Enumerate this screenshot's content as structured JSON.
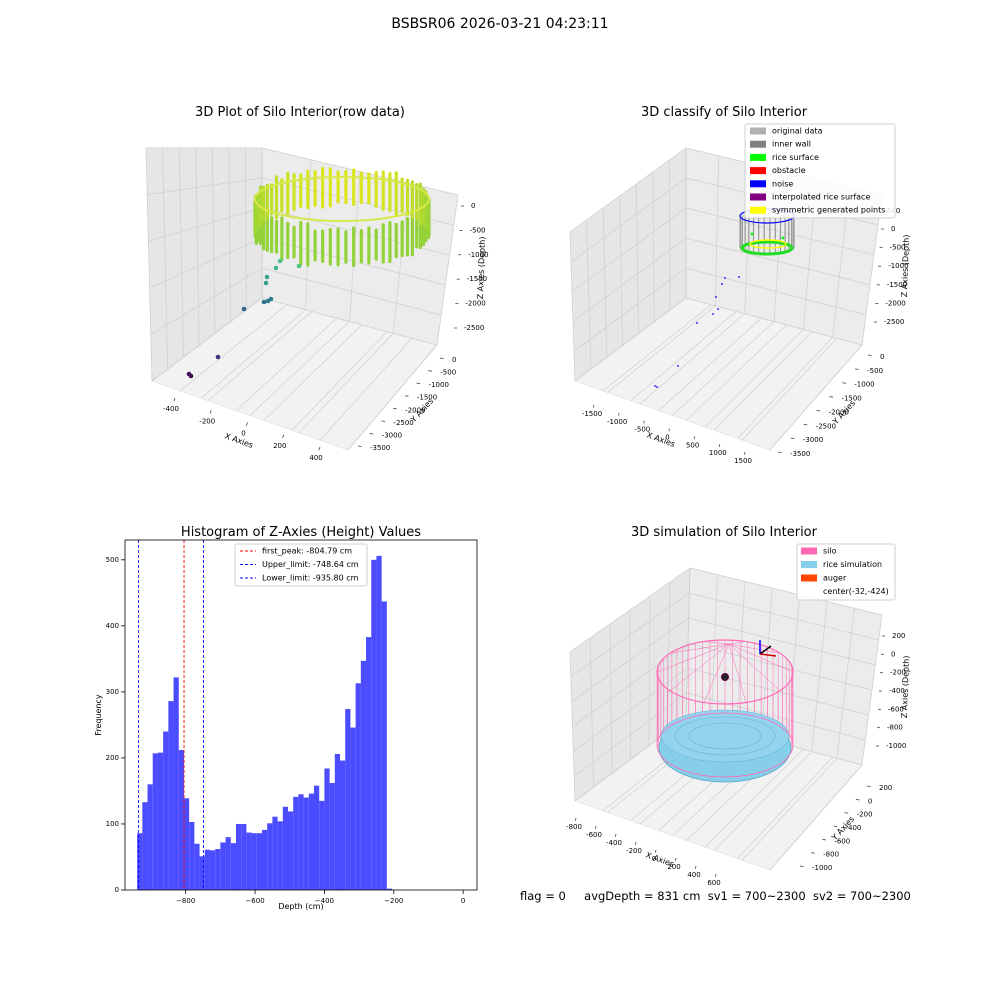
{
  "suptitle": "BSBSR06 2026-03-21 04:23:11",
  "status_line": {
    "flag": "flag = 0",
    "avg_depth": "avgDepth = 831 cm",
    "sv1": "sv1 = 700~2300",
    "sv2": "sv2 = 700~2300"
  },
  "chart_data": [
    {
      "type": "scatter",
      "projection": "3d",
      "title": "3D Plot of Silo Interior(row data)",
      "xlabel": "X Axies",
      "ylabel": "Y Axies",
      "zlabel": "Z Axies (Depth)",
      "xticks": [
        "-400",
        "-200",
        "0",
        "200",
        "400"
      ],
      "yticks": [
        "0",
        "-500",
        "-1000",
        "-1500",
        "-2000",
        "-2500",
        "-3000",
        "-3500"
      ],
      "zticks": [
        "0",
        "-500",
        "-1000",
        "-1500",
        "-2000",
        "-2500"
      ],
      "colormap": "viridis",
      "sparse_points_depth": [
        -1230,
        -1340,
        -1450,
        -1520,
        -1680,
        -1690,
        -1710,
        -2320,
        -2860,
        -2880
      ]
    },
    {
      "type": "scatter",
      "projection": "3d",
      "title": "3D classify of Silo Interior",
      "xlabel": "X Axies",
      "ylabel": "Y Axies",
      "zlabel": "Z Axies (Depth)",
      "xticks": [
        "-1500",
        "-1000",
        "-500",
        "0",
        "500",
        "1000",
        "1500"
      ],
      "yticks": [
        "0",
        "-500",
        "-1000",
        "-1500",
        "-2000",
        "-2500",
        "-3000",
        "-3500"
      ],
      "zticks": [
        "0",
        "-500",
        "-1000",
        "-1500",
        "-2000",
        "-2500"
      ],
      "partial_top_tick": "500",
      "legend": [
        {
          "label": "original data",
          "color": "#b0b0b0"
        },
        {
          "label": "inner wall",
          "color": "#808080"
        },
        {
          "label": "rice surface",
          "color": "#00ff00"
        },
        {
          "label": "obstacle",
          "color": "#ff0000"
        },
        {
          "label": "noise",
          "color": "#0000ff"
        },
        {
          "label": "interpolated rice surface",
          "color": "#800080"
        },
        {
          "label": "symmetric generated points",
          "color": "#ffff00"
        }
      ],
      "legend_position": "top-right"
    },
    {
      "type": "bar",
      "title": "Histogram of Z-Axies (Height) Values",
      "xlabel": "Depth (cm)",
      "ylabel": "Frequency",
      "xlim": [
        -975,
        40
      ],
      "ylim": [
        0,
        530
      ],
      "xticks": [
        -800,
        -600,
        -400,
        -200,
        0
      ],
      "yticks": [
        0,
        100,
        200,
        300,
        400,
        500
      ],
      "bar_color": "#4b4bff",
      "bin_start": -940,
      "bin_width": 15,
      "values": [
        86,
        133,
        160,
        207,
        208,
        240,
        286,
        322,
        212,
        139,
        103,
        70,
        51,
        61,
        60,
        62,
        72,
        80,
        71,
        100,
        100,
        87,
        86,
        86,
        91,
        101,
        111,
        104,
        126,
        119,
        141,
        145,
        140,
        146,
        158,
        135,
        184,
        162,
        206,
        196,
        274,
        246,
        313,
        347,
        383,
        500,
        506,
        437,
        2
      ],
      "lines": [
        {
          "label": "first_peak: -804.79 cm",
          "x": -804.79,
          "color": "#ff0000"
        },
        {
          "label": "Upper_limit: -748.64 cm",
          "x": -748.64,
          "color": "#0000ff"
        },
        {
          "label": "Lower_limit: -935.80 cm",
          "x": -935.8,
          "color": "#0000ff"
        }
      ],
      "legend_position": "top-center"
    },
    {
      "type": "scatter",
      "projection": "3d",
      "title": "3D simulation of Silo Interior",
      "xlabel": "X Axies",
      "ylabel": "Y Axies",
      "zlabel": "Z Axies (Depth)",
      "xticks": [
        "-800",
        "-600",
        "-400",
        "-200",
        "0",
        "200",
        "400",
        "600"
      ],
      "yticks": [
        "200",
        "0",
        "-200",
        "-400",
        "-600",
        "-800",
        "-1000"
      ],
      "zticks": [
        "200",
        "0",
        "-200",
        "-400",
        "-600",
        "-800",
        "-1000"
      ],
      "legend": [
        {
          "label": "silo",
          "color": "#ff69b4"
        },
        {
          "label": "rice simulation",
          "color": "#87ceeb"
        },
        {
          "label": "auger",
          "color": "#ff4500"
        },
        {
          "label": "center(-32,-424)",
          "color": ""
        }
      ],
      "legend_position": "top-right"
    }
  ]
}
